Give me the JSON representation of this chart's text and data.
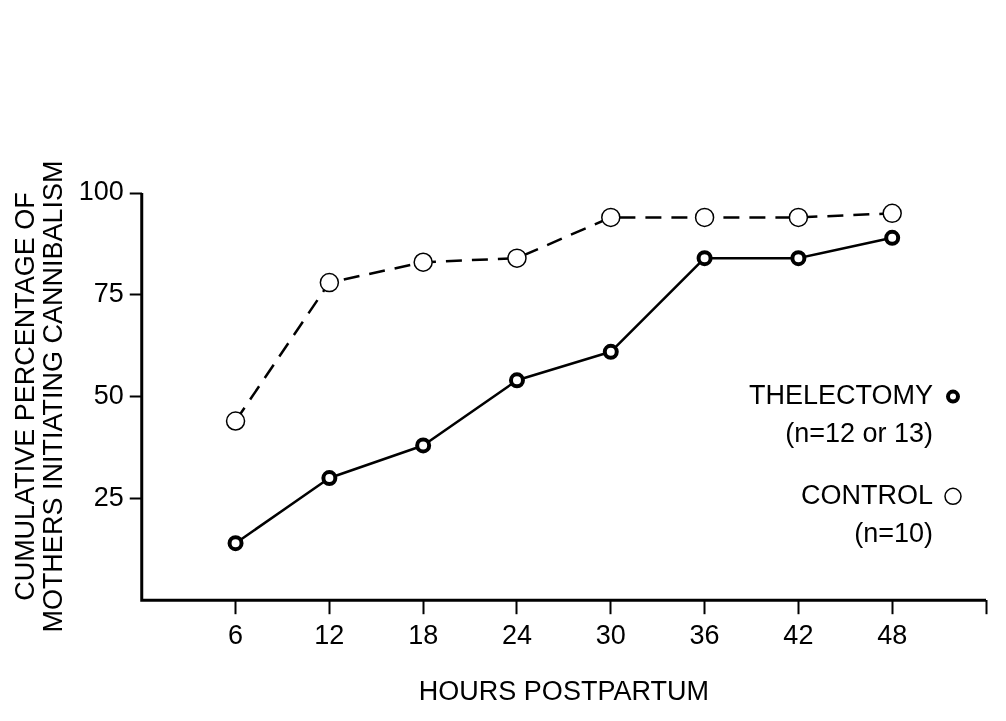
{
  "chart_data": {
    "type": "line",
    "xlabel": "HOURS POSTPARTUM",
    "ylabel": "CUMULATIVE PERCENTAGE OF\nMOTHERS INITIATING CANNIBALISM",
    "x": [
      6,
      12,
      18,
      24,
      30,
      36,
      42,
      48
    ],
    "series": [
      {
        "name": "THELECTOMY",
        "color": "#000000",
        "line_style": "solid",
        "values": [
          14,
          30,
          38,
          54,
          61,
          84,
          84,
          89
        ]
      },
      {
        "name": "CONTROL",
        "color": "#000000",
        "line_style": "dashed",
        "values": [
          44,
          78,
          83,
          84,
          94,
          94,
          94,
          95
        ]
      }
    ],
    "xlim": [
      0,
      54
    ],
    "xticks": [
      6,
      12,
      18,
      24,
      30,
      36,
      42,
      48,
      {
        "value": 54,
        "label": null
      }
    ],
    "ylim": [
      0,
      100
    ],
    "yticks": [
      25,
      50,
      75,
      100
    ],
    "grid": false,
    "legend": "right",
    "marker": "circle",
    "annotations": [
      "(n=12 or 13)",
      "(n=10)"
    ]
  }
}
